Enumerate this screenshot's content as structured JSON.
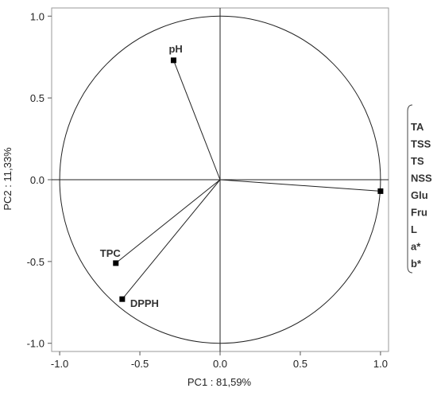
{
  "chart_data": {
    "type": "scatter",
    "title": "",
    "xlabel": "PC1 : 81,59%",
    "ylabel": "PC2 : 11,33%",
    "xlim": [
      -1.05,
      1.05
    ],
    "ylim": [
      -1.05,
      1.05
    ],
    "x_ticks": [
      "-1.0",
      "-0.5",
      "0.0",
      "0.5",
      "1.0"
    ],
    "y_ticks": [
      "1.0",
      "0.5",
      "0.0",
      "-0.5",
      "-1.0"
    ],
    "unit_circle": true,
    "loading_lines_from_origin": true,
    "points": [
      {
        "label": "pH",
        "x": -0.29,
        "y": 0.73
      },
      {
        "label": "TPC",
        "x": -0.65,
        "y": -0.51
      },
      {
        "label": "DPPH",
        "x": -0.61,
        "y": -0.73
      },
      {
        "label": "",
        "x": 1.0,
        "y": -0.07
      }
    ],
    "grouped_variables": [
      "TA",
      "TSS",
      "TS",
      "NSS",
      "Glu",
      "Fru",
      "L",
      "a*",
      "b*"
    ],
    "marker_color": "#000000",
    "line_color": "#222222"
  }
}
